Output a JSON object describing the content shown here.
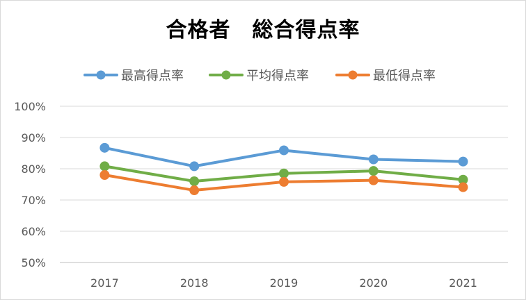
{
  "chart_data": {
    "type": "line",
    "title": "合格者　総合得点率",
    "categories": [
      "2017",
      "2018",
      "2019",
      "2020",
      "2021"
    ],
    "ylim": [
      0.5,
      1.0
    ],
    "yticks": [
      "50%",
      "60%",
      "70%",
      "80%",
      "90%",
      "100%"
    ],
    "ytick_values": [
      0.5,
      0.6,
      0.7,
      0.8,
      0.9,
      1.0
    ],
    "grid": true,
    "legend_position": "top",
    "series": [
      {
        "name": "最高得点率",
        "color": "#5b9bd5",
        "values": [
          0.867,
          0.808,
          0.859,
          0.83,
          0.823
        ]
      },
      {
        "name": "平均得点率",
        "color": "#70ad47",
        "values": [
          0.808,
          0.76,
          0.785,
          0.793,
          0.765
        ]
      },
      {
        "name": "最低得点率",
        "color": "#ed7d31",
        "values": [
          0.78,
          0.731,
          0.758,
          0.763,
          0.741
        ]
      }
    ]
  }
}
